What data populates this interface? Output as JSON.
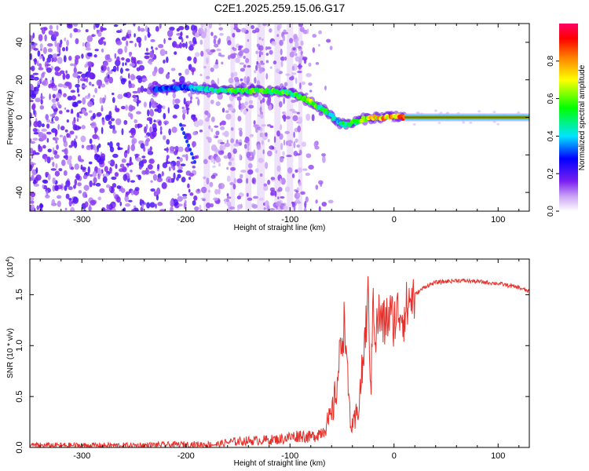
{
  "title": "C2E1.2025.259.15.06.G17",
  "charts": [
    {
      "id": "spectrogram",
      "ylabel": "Frequency (Hz)",
      "xlabel": "Height of straight line (km)",
      "colorbar_label": "Normalized spectral amplitude"
    },
    {
      "id": "snr",
      "ylabel": "SNR (10 * v/v)",
      "xlabel": "Height of straight line (km)",
      "y_multiplier": "(x10",
      "y_multiplier_exp": "4",
      "y_multiplier_close": ")"
    }
  ],
  "chart_data": [
    {
      "type": "heatmap",
      "title": "C2E1.2025.259.15.06.G17",
      "xlabel": "Height of straight line (km)",
      "ylabel": "Frequency (Hz)",
      "xlim": [
        -350,
        130
      ],
      "ylim": [
        -50,
        50
      ],
      "x_ticks": [
        -300,
        -200,
        -100,
        0,
        100
      ],
      "x_tick_labels": [
        "-300",
        "-200",
        "-100",
        "0",
        "100"
      ],
      "y_ticks": [
        -40,
        -20,
        0,
        20,
        40
      ],
      "y_tick_labels": [
        "-40",
        "-20",
        "0",
        "20",
        "40"
      ],
      "colorbar": {
        "label": "Normalized spectral amplitude",
        "range": [
          0,
          1
        ],
        "ticks": [
          0.0,
          0.2,
          0.4,
          0.6,
          0.8
        ],
        "tick_labels": [
          "0.0",
          "0.2",
          "0.4",
          "0.6",
          "0.8"
        ],
        "colors": [
          "#ffffff",
          "#c9a2f5",
          "#7a1ff0",
          "#0000ff",
          "#00e5ff",
          "#00ff00",
          "#ffff00",
          "#ff8000",
          "#ff0000",
          "#ff0066"
        ]
      },
      "ridge": {
        "x": [
          -230,
          -200,
          -180,
          -160,
          -140,
          -120,
          -100,
          -90,
          -80,
          -70,
          -62,
          -55,
          -48,
          -40,
          -30,
          -20,
          -10,
          0,
          10,
          50,
          100,
          130
        ],
        "y": [
          15,
          16,
          15,
          14,
          14,
          14,
          13,
          11,
          8,
          5,
          2,
          -2,
          -4,
          -3,
          -1,
          0,
          0,
          1,
          0,
          0,
          0,
          0
        ],
        "amplitude": [
          0.3,
          0.35,
          0.45,
          0.55,
          0.6,
          0.6,
          0.55,
          0.6,
          0.7,
          0.55,
          0.5,
          0.45,
          0.5,
          0.55,
          0.65,
          0.75,
          0.8,
          0.8,
          0.9,
          0.95,
          0.95,
          0.95
        ]
      }
    },
    {
      "type": "line",
      "xlabel": "Height of straight line (km)",
      "ylabel": "SNR (10 * v/v)",
      "xlim": [
        -350,
        130
      ],
      "ylim": [
        0,
        1.85
      ],
      "y_scale": "x10^4",
      "x_ticks": [
        -300,
        -200,
        -100,
        0,
        100
      ],
      "x_tick_labels": [
        "-300",
        "-200",
        "-100",
        "0",
        "100"
      ],
      "y_ticks": [
        0.0,
        0.5,
        1.0,
        1.5
      ],
      "y_tick_labels": [
        "0.0",
        "0.5",
        "1.0",
        "1.5"
      ],
      "series": [
        {
          "color": "#e8302a",
          "x": [
            -350,
            -300,
            -250,
            -200,
            -170,
            -160,
            -150,
            -130,
            -110,
            -100,
            -90,
            -80,
            -70,
            -60,
            -55,
            -50,
            -47,
            -45,
            -42,
            -40,
            -35,
            -30,
            -25,
            -22,
            -20,
            -18,
            -15,
            -10,
            -5,
            0,
            5,
            10,
            15,
            20,
            30,
            40,
            50,
            60,
            80,
            100,
            120,
            130
          ],
          "y": [
            0.02,
            0.02,
            0.02,
            0.03,
            0.03,
            0.05,
            0.06,
            0.07,
            0.08,
            0.1,
            0.12,
            0.1,
            0.15,
            0.3,
            0.6,
            1.1,
            1.25,
            0.7,
            0.3,
            0.15,
            0.35,
            0.8,
            1.45,
            0.55,
            1.6,
            1.05,
            1.3,
            1.2,
            1.3,
            1.25,
            1.35,
            1.3,
            1.45,
            1.5,
            1.58,
            1.62,
            1.63,
            1.64,
            1.63,
            1.61,
            1.57,
            1.53
          ]
        }
      ]
    }
  ]
}
